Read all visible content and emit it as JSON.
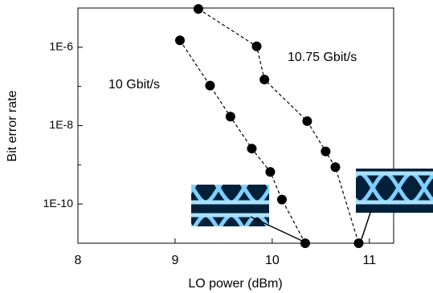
{
  "chart_data": {
    "type": "scatter-line",
    "x_label": "LO power (dBm)",
    "y_label": "Bit error rate",
    "log_y": true,
    "xlim": [
      8,
      11.25
    ],
    "xticks": [
      8,
      9,
      10,
      11
    ],
    "ylim": [
      1e-11,
      1e-05
    ],
    "yticks": [
      {
        "value": 1e-06,
        "label": "1E-6"
      },
      {
        "value": 1e-08,
        "label": "1E-8"
      },
      {
        "value": 1e-10,
        "label": "1E-10"
      }
    ],
    "yminor": [
      1e-07,
      1e-09
    ],
    "series": [
      {
        "name": "10 Gbit/s",
        "color": "#000000",
        "x": [
          9.05,
          9.36,
          9.57,
          9.79,
          9.98,
          10.1,
          10.34
        ],
        "values": [
          1.5e-06,
          1.05e-07,
          1.7e-08,
          2.6e-09,
          6.6e-10,
          1.3e-10,
          1e-11
        ]
      },
      {
        "name": "10.75 Gbit/s",
        "color": "#000000",
        "x": [
          9.24,
          9.84,
          9.92,
          10.36,
          10.55,
          10.65,
          10.89
        ],
        "values": [
          9.5e-06,
          1.05e-06,
          1.5e-07,
          1.3e-08,
          2.2e-09,
          8.7e-10,
          1e-11
        ]
      }
    ]
  }
}
